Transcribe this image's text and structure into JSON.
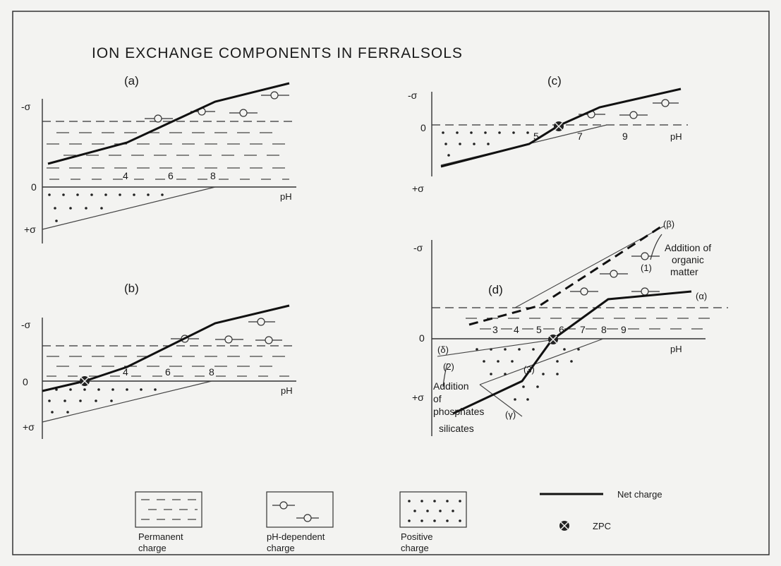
{
  "title": "ION EXCHANGE COMPONENTS IN FERRALSOLS",
  "panels": {
    "a": {
      "label": "(a)",
      "neg": "-σ",
      "zero": "0",
      "pos": "+σ",
      "ticks": [
        "4",
        "6",
        "8"
      ],
      "xaxis": "pH"
    },
    "b": {
      "label": "(b)",
      "neg": "-σ",
      "zero": "0",
      "pos": "+σ",
      "ticks": [
        "4",
        "6",
        "8"
      ],
      "xaxis": "pH"
    },
    "c": {
      "label": "(c)",
      "neg": "-σ",
      "zero": "0",
      "pos": "+σ",
      "ticks": [
        "5",
        "7",
        "9"
      ],
      "xaxis": "pH"
    },
    "d": {
      "label": "(d)",
      "neg": "-σ",
      "zero": "0",
      "pos": "+σ",
      "ticks": [
        "3",
        "4",
        "5",
        "6",
        "7",
        "8",
        "9"
      ],
      "xaxis": "pH",
      "beta": "(β)",
      "alpha": "(α)",
      "delta": "(δ)",
      "gamma": "(γ)",
      "one": "(1)",
      "two": "(2)",
      "three": "(3)",
      "organic_1": "Addition of",
      "organic_2": "organic",
      "organic_3": "matter",
      "phos_1": "Addition",
      "phos_2": "of",
      "phos_3": "phosphates",
      "phos_4": "silicates"
    }
  },
  "legend": {
    "permanent_1": "Permanent",
    "permanent_2": "charge",
    "phdep_1": "pH-dependent",
    "phdep_2": "charge",
    "positive_1": "Positive",
    "positive_2": "charge",
    "net": "Net charge",
    "zpc": "ZPC"
  }
}
